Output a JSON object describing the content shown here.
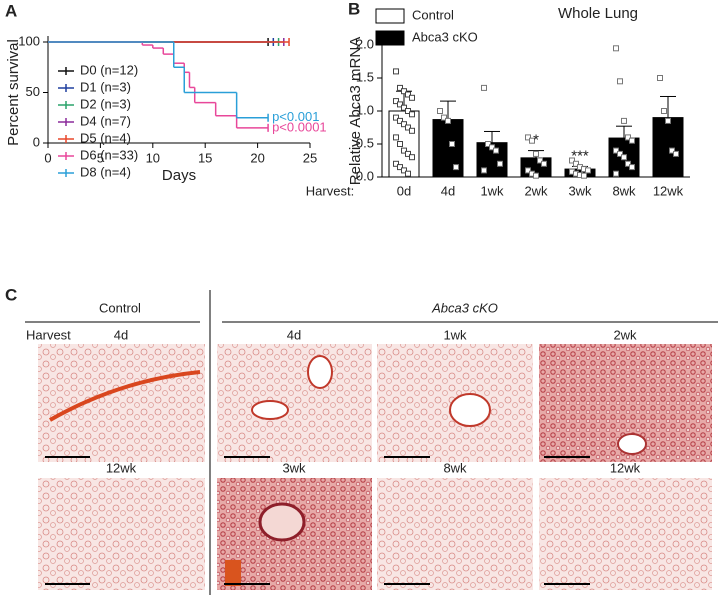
{
  "chart_data": [
    {
      "type": "survival",
      "letter": "A",
      "xlabel": "Days",
      "ylabel": "Percent survival",
      "xlim": [
        0,
        25
      ],
      "xticks": [
        0,
        5,
        10,
        15,
        20,
        25
      ],
      "ylim": [
        0,
        100
      ],
      "yticks": [
        0,
        50,
        100
      ],
      "series": [
        {
          "name": "D0 (n=12)",
          "color": "#111111",
          "x": [
            0,
            21
          ],
          "values": [
            100,
            100
          ]
        },
        {
          "name": "D1 (n=3)",
          "color": "#1f3f9f",
          "x": [
            0,
            21.5
          ],
          "values": [
            100,
            100
          ]
        },
        {
          "name": "D2 (n=3)",
          "color": "#2aa36b",
          "x": [
            0,
            22
          ],
          "values": [
            100,
            100
          ]
        },
        {
          "name": "D4 (n=7)",
          "color": "#8b2a9a",
          "x": [
            0,
            22.5
          ],
          "values": [
            100,
            100
          ]
        },
        {
          "name": "D5 (n=4)",
          "color": "#e8472a",
          "x": [
            0,
            23
          ],
          "values": [
            100,
            100
          ]
        },
        {
          "name": "D6 (n=33)",
          "color": "#e8479a",
          "x": [
            0,
            9,
            10,
            11,
            12,
            13,
            13.5,
            14,
            16,
            18,
            21
          ],
          "values": [
            100,
            97,
            94,
            88,
            79,
            70,
            55,
            40,
            27,
            15,
            15
          ]
        },
        {
          "name": "D8 (n=4)",
          "color": "#2a9fd8",
          "x": [
            0,
            12,
            13,
            18,
            21
          ],
          "values": [
            100,
            75,
            50,
            25,
            25
          ]
        }
      ],
      "annotations": [
        {
          "text": "p<0.001",
          "color": "#2a9fd8",
          "x": 21,
          "y": 25
        },
        {
          "text": "p<0.0001",
          "color": "#e8479a",
          "x": 21,
          "y": 15
        }
      ]
    },
    {
      "type": "bar",
      "letter": "B",
      "title": "Whole Lung",
      "ylabel": "Relative Abca3 mRNA",
      "xlabel": "Harvest:",
      "categories": [
        "0d",
        "4d",
        "1wk",
        "2wk",
        "3wk",
        "8wk",
        "12wk"
      ],
      "values": [
        1.0,
        0.87,
        0.52,
        0.29,
        0.12,
        0.59,
        0.9
      ],
      "errors": [
        0.3,
        0.28,
        0.17,
        0.11,
        0.04,
        0.18,
        0.32
      ],
      "colors": [
        "#ffffff",
        "#000000",
        "#000000",
        "#000000",
        "#000000",
        "#000000",
        "#000000"
      ],
      "legend": [
        {
          "name": "Control",
          "color": "#ffffff"
        },
        {
          "name": "Abca3 cKO",
          "color": "#000000"
        }
      ],
      "significance": [
        null,
        null,
        null,
        "*",
        "***",
        null,
        null
      ],
      "points": [
        [
          1.6,
          1.35,
          1.3,
          1.25,
          1.2,
          1.15,
          1.1,
          1.05,
          1.0,
          0.95,
          0.9,
          0.85,
          0.8,
          0.75,
          0.7,
          0.6,
          0.5,
          0.4,
          0.35,
          0.3,
          0.2,
          0.15,
          0.1,
          0.05
        ],
        [
          1.0,
          0.9,
          0.85,
          0.5,
          0.15
        ],
        [
          1.35,
          0.5,
          0.45,
          0.4,
          0.2,
          0.1
        ],
        [
          0.6,
          0.55,
          0.35,
          0.25,
          0.2,
          0.1,
          0.05,
          0.02
        ],
        [
          0.25,
          0.2,
          0.15,
          0.12,
          0.1,
          0.08,
          0.05,
          0.03,
          0.02
        ],
        [
          1.95,
          1.45,
          0.85,
          0.6,
          0.55,
          0.4,
          0.35,
          0.3,
          0.2,
          0.15,
          0.05
        ],
        [
          1.5,
          1.0,
          0.85,
          0.4,
          0.35
        ]
      ],
      "ylim": [
        0,
        2
      ],
      "yticks": [
        {
          "value": 0,
          "label": "0.0"
        },
        0.5,
        {
          "value": 1,
          "label": "1.0"
        },
        1.5,
        {
          "value": 2,
          "label": "2.0"
        }
      ]
    }
  ],
  "panel_c": {
    "letter": "C",
    "groups": [
      "Control",
      "Abca3 cKO"
    ],
    "harvest": "Harvest",
    "images": [
      {
        "label": "4d"
      },
      {
        "label": "4d"
      },
      {
        "label": "1wk"
      },
      {
        "label": "2wk"
      },
      {
        "label": "12wk"
      },
      {
        "label": "3wk"
      },
      {
        "label": "8wk"
      },
      {
        "label": "12wk"
      }
    ]
  }
}
